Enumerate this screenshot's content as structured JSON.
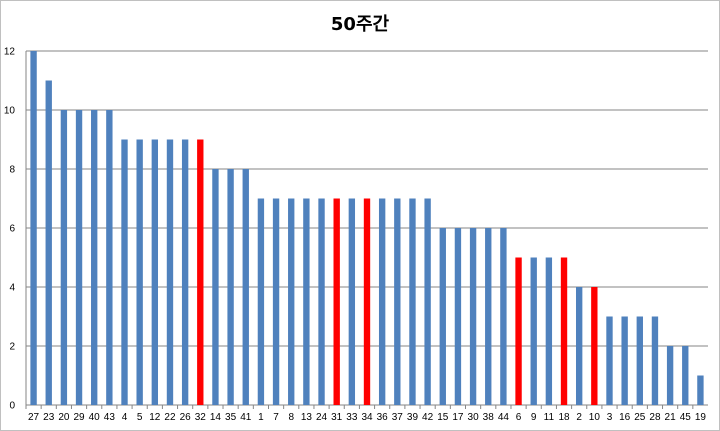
{
  "chart_data": {
    "type": "bar",
    "title": "50주간",
    "xlabel": "",
    "ylabel": "",
    "ylim": [
      0,
      12
    ],
    "yticks": [
      0,
      2,
      4,
      6,
      8,
      10,
      12
    ],
    "grid": true,
    "legend": "none",
    "default_color": "#4f81bd",
    "highlight_color": "#ff0000",
    "categories": [
      "27",
      "23",
      "20",
      "29",
      "40",
      "43",
      "4",
      "5",
      "12",
      "22",
      "26",
      "32",
      "14",
      "35",
      "41",
      "1",
      "7",
      "8",
      "13",
      "24",
      "31",
      "33",
      "34",
      "36",
      "37",
      "39",
      "42",
      "15",
      "17",
      "30",
      "38",
      "44",
      "6",
      "9",
      "11",
      "18",
      "2",
      "10",
      "3",
      "16",
      "25",
      "28",
      "21",
      "45",
      "19"
    ],
    "values": [
      12,
      11,
      10,
      10,
      10,
      10,
      9,
      9,
      9,
      9,
      9,
      9,
      8,
      8,
      8,
      7,
      7,
      7,
      7,
      7,
      7,
      7,
      7,
      7,
      7,
      7,
      7,
      6,
      6,
      6,
      6,
      6,
      5,
      5,
      5,
      5,
      4,
      4,
      3,
      3,
      3,
      3,
      2,
      2,
      1
    ],
    "highlighted": [
      "32",
      "31",
      "34",
      "6",
      "18",
      "10"
    ]
  }
}
